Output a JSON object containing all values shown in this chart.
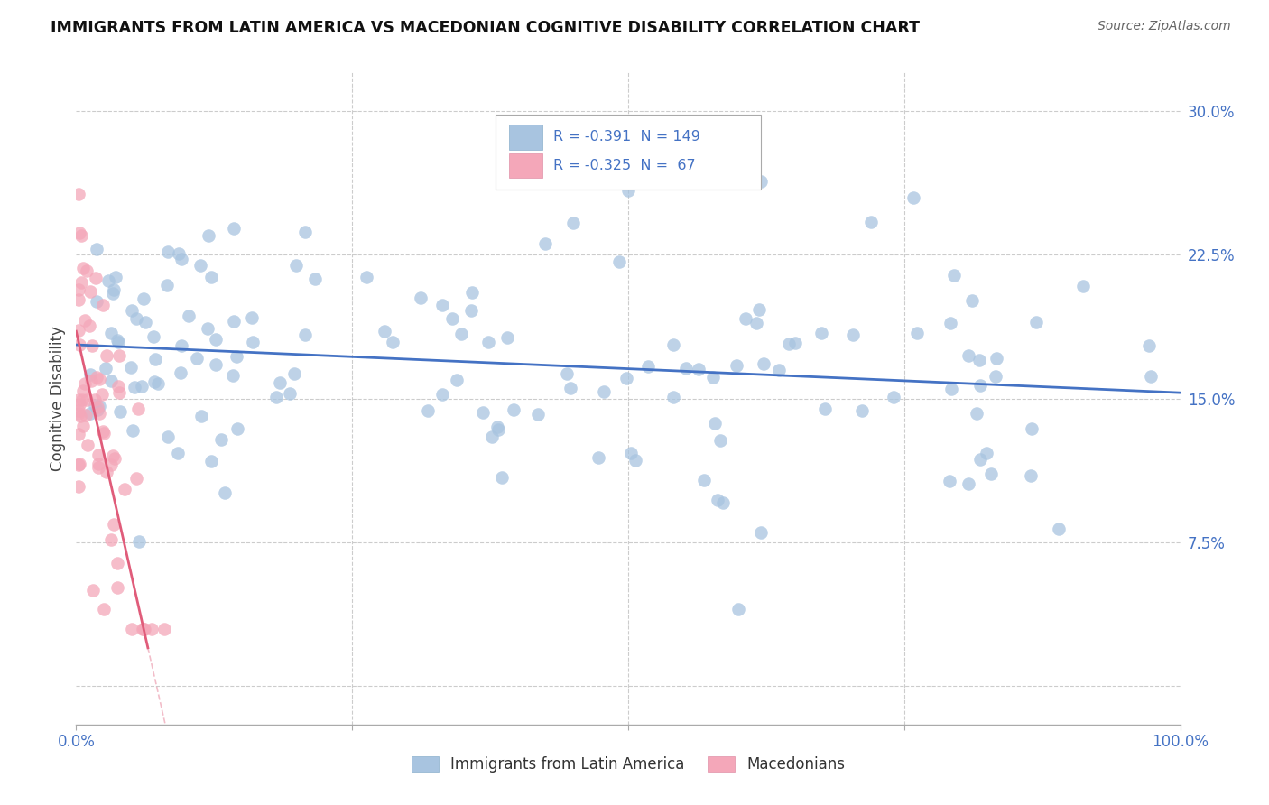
{
  "title": "IMMIGRANTS FROM LATIN AMERICA VS MACEDONIAN COGNITIVE DISABILITY CORRELATION CHART",
  "source": "Source: ZipAtlas.com",
  "ylabel": "Cognitive Disability",
  "xlim": [
    0.0,
    1.0
  ],
  "ylim": [
    -0.02,
    0.32
  ],
  "yticks": [
    0.0,
    0.075,
    0.15,
    0.225,
    0.3
  ],
  "ytick_labels": [
    "",
    "7.5%",
    "15.0%",
    "22.5%",
    "30.0%"
  ],
  "grid_color": "#cccccc",
  "background_color": "#ffffff",
  "blue_color": "#a8c4e0",
  "blue_line_color": "#4472c4",
  "pink_color": "#f4a7b9",
  "pink_line_color": "#e05c7a",
  "legend_R1": "-0.391",
  "legend_N1": "149",
  "legend_R2": "-0.325",
  "legend_N2": " 67",
  "legend_label1": "Immigrants from Latin America",
  "legend_label2": "Macedonians",
  "blue_seed": 42,
  "pink_seed": 99,
  "title_fontsize": 12.5,
  "axis_tick_fontsize": 12,
  "legend_fontsize": 12
}
